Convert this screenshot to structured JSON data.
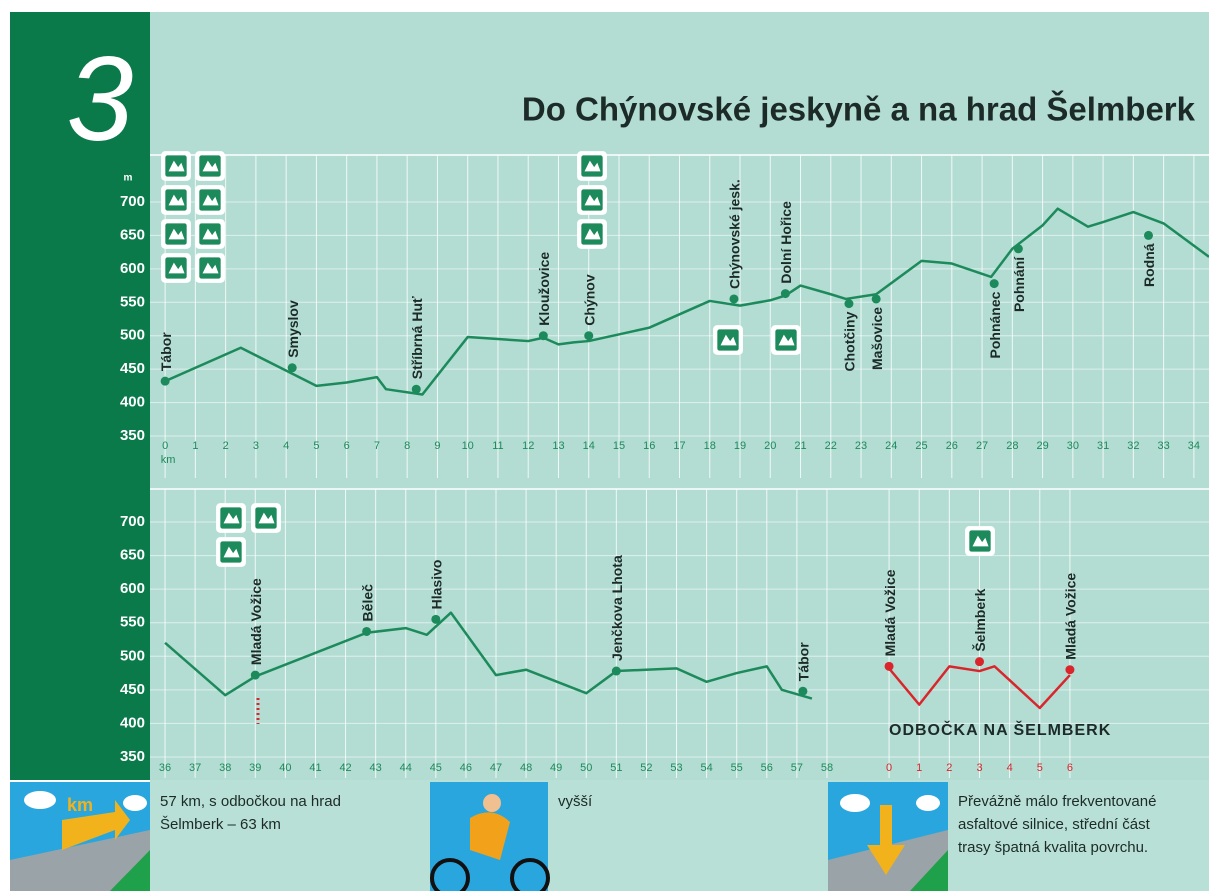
{
  "badge": "3",
  "title": "Do Chýnovské jeskyně a na hrad Šelmberk",
  "chart_data": [
    {
      "type": "line",
      "ylabel": "m",
      "xlabel": "km",
      "xlim": [
        -0.5,
        34.5
      ],
      "ylim": [
        350,
        700
      ],
      "xticks": [
        0,
        1,
        2,
        3,
        4,
        5,
        6,
        7,
        8,
        9,
        10,
        11,
        12,
        13,
        14,
        15,
        16,
        17,
        18,
        19,
        20,
        21,
        22,
        23,
        24,
        25,
        26,
        27,
        28,
        29,
        30,
        31,
        32,
        33,
        34
      ],
      "yticks": [
        350,
        400,
        450,
        500,
        550,
        600,
        650,
        700
      ],
      "x": [
        0,
        2.5,
        5,
        6,
        7,
        7.3,
        8.5,
        10,
        11,
        12,
        12.5,
        13,
        13.5,
        14,
        16,
        18,
        19,
        20,
        20.5,
        21,
        22,
        22.5,
        23.5,
        25,
        26,
        27.3,
        28,
        29,
        29.5,
        30.5,
        31,
        32,
        33,
        34.5
      ],
      "series": [
        {
          "color": "#1d8a5c",
          "values": [
            432,
            482,
            425,
            430,
            438,
            420,
            412,
            498,
            495,
            492,
            497,
            487,
            490,
            492,
            512,
            552,
            545,
            553,
            560,
            575,
            562,
            555,
            562,
            612,
            608,
            588,
            630,
            665,
            690,
            663,
            670,
            685,
            668,
            618
          ]
        }
      ],
      "markers": {
        "labels": [
          "Tábor",
          "Smyslov",
          "Stříbrná Huť",
          "Kloužovice",
          "Chýnov",
          "Chýnovské jesk.",
          "Dolní Hořice",
          "Chotčiny",
          "Mašovice",
          "Pohnánec",
          "Pohnání",
          "Rodná"
        ],
        "x": [
          0,
          4.2,
          8.3,
          12.5,
          14,
          18.8,
          20.5,
          22.6,
          23.5,
          27.4,
          28.2,
          32.5
        ],
        "values": [
          432,
          452,
          420,
          500,
          500,
          555,
          563,
          548,
          555,
          578,
          630,
          650
        ]
      }
    },
    {
      "type": "line",
      "xlim": [
        35.5,
        58.5
      ],
      "ylim": [
        350,
        700
      ],
      "xticks": [
        36,
        37,
        38,
        39,
        40,
        41,
        42,
        43,
        44,
        45,
        46,
        47,
        48,
        49,
        50,
        51,
        52,
        53,
        54,
        55,
        56,
        57,
        58
      ],
      "yticks": [
        350,
        400,
        450,
        500,
        550,
        600,
        650,
        700
      ],
      "x": [
        36,
        38,
        39,
        42.7,
        44,
        44.7,
        45.5,
        47,
        48,
        50,
        51,
        53,
        54,
        55,
        56,
        56.5,
        57.5
      ],
      "series": [
        {
          "color": "#1d8a5c",
          "values": [
            520,
            442,
            470,
            535,
            542,
            532,
            565,
            472,
            480,
            445,
            478,
            482,
            462,
            475,
            485,
            450,
            437
          ]
        }
      ],
      "markers": {
        "labels": [
          "Mladá Vožice",
          "Běleč",
          "Hlasivo",
          "Jenčkova Lhota",
          "Tábor"
        ],
        "x": [
          39,
          42.7,
          45,
          51,
          57.2
        ],
        "values": [
          472,
          537,
          555,
          478,
          448
        ]
      }
    },
    {
      "type": "line",
      "annotation": "ODBOČKA NA ŠELMBERK",
      "xlim": [
        -0.5,
        6.5
      ],
      "ylim": [
        350,
        700
      ],
      "xticks": [
        0,
        1,
        2,
        3,
        4,
        5,
        6
      ],
      "x": [
        0,
        1,
        2,
        3,
        3.5,
        5,
        6
      ],
      "series": [
        {
          "color": "#d9262c",
          "values": [
            482,
            428,
            485,
            478,
            485,
            423,
            472
          ]
        }
      ],
      "markers": {
        "labels": [
          "Mladá Vožice",
          "Šelmberk",
          "Mladá Vožice"
        ],
        "x": [
          0,
          3,
          6
        ],
        "values": [
          485,
          492,
          480
        ]
      }
    }
  ],
  "footer": {
    "distance": [
      "57 km, s odbočkou na hrad",
      "Šelmberk – 63 km"
    ],
    "difficulty": [
      "vyšší"
    ],
    "surface": [
      "Převážně málo frekventované",
      "asfaltové silnice, střední část",
      "trasy špatná kvalita povrchu."
    ]
  }
}
